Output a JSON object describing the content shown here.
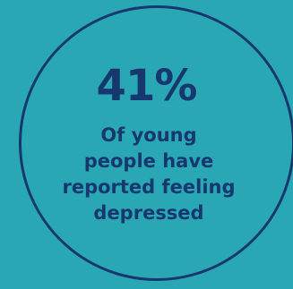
{
  "stat": {
    "value": "41%",
    "caption": "Of young\npeople have\nreported feeling\ndepressed"
  },
  "colors": {
    "background": "#2aa7b4",
    "text": "#16386f",
    "ring": "#16386f"
  }
}
